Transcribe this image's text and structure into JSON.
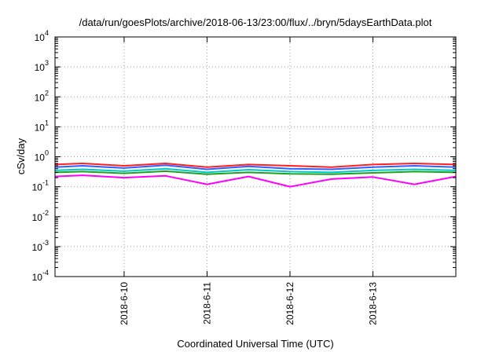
{
  "chart_data": {
    "type": "line",
    "title": "/data/run/goesPlots/archive/2018-06-13/23:00/flux/../bryn/5daysEarthData.plot",
    "xlabel": "Coordinated Universal Time (UTC)",
    "ylabel": "cSv/day",
    "yscale": "log",
    "ylim": [
      0.0001,
      10000
    ],
    "xlim": [
      "2018-06-09 04:00",
      "2018-06-14 00:00"
    ],
    "grid": true,
    "x_ticks": [
      {
        "value": "2018-06-10 00:00",
        "label": "2018-6-10"
      },
      {
        "value": "2018-06-11 00:00",
        "label": "2018-6-11"
      },
      {
        "value": "2018-06-12 00:00",
        "label": "2018-6-12"
      },
      {
        "value": "2018-06-13 00:00",
        "label": "2018-6-13"
      }
    ],
    "y_ticks": [
      {
        "value": 10000,
        "base": "10",
        "exp": "4"
      },
      {
        "value": 1000,
        "base": "10",
        "exp": "3"
      },
      {
        "value": 100,
        "base": "10",
        "exp": "2"
      },
      {
        "value": 10,
        "base": "10",
        "exp": "1"
      },
      {
        "value": 1,
        "base": "10",
        "exp": "0"
      },
      {
        "value": 0.1,
        "base": "10",
        "exp": "-1"
      },
      {
        "value": 0.01,
        "base": "10",
        "exp": "-2"
      },
      {
        "value": 0.001,
        "base": "10",
        "exp": "-3"
      },
      {
        "value": 0.0001,
        "base": "10",
        "exp": "-4"
      }
    ],
    "series": [
      {
        "color": "#ff2020",
        "x": [
          "2018-06-09 04:00",
          "2018-06-09 12:00",
          "2018-06-10 00:00",
          "2018-06-10 12:00",
          "2018-06-11 00:00",
          "2018-06-11 12:00",
          "2018-06-12 00:00",
          "2018-06-12 12:00",
          "2018-06-13 00:00",
          "2018-06-13 12:00",
          "2018-06-14 00:00"
        ],
        "values": [
          0.55,
          0.6,
          0.5,
          0.6,
          0.45,
          0.55,
          0.5,
          0.45,
          0.55,
          0.6,
          0.55
        ]
      },
      {
        "color": "#3060ff",
        "x": [
          "2018-06-09 04:00",
          "2018-06-09 12:00",
          "2018-06-10 00:00",
          "2018-06-10 12:00",
          "2018-06-11 00:00",
          "2018-06-11 12:00",
          "2018-06-12 00:00",
          "2018-06-12 12:00",
          "2018-06-13 00:00",
          "2018-06-13 12:00",
          "2018-06-14 00:00"
        ],
        "values": [
          0.45,
          0.5,
          0.42,
          0.52,
          0.38,
          0.48,
          0.4,
          0.38,
          0.45,
          0.5,
          0.45
        ]
      },
      {
        "color": "#00c8c8",
        "x": [
          "2018-06-09 04:00",
          "2018-06-09 12:00",
          "2018-06-10 00:00",
          "2018-06-10 12:00",
          "2018-06-11 00:00",
          "2018-06-11 12:00",
          "2018-06-12 00:00",
          "2018-06-12 12:00",
          "2018-06-13 00:00",
          "2018-06-13 12:00",
          "2018-06-14 00:00"
        ],
        "values": [
          0.35,
          0.38,
          0.33,
          0.4,
          0.3,
          0.37,
          0.32,
          0.3,
          0.35,
          0.38,
          0.35
        ]
      },
      {
        "color": "#20a020",
        "x": [
          "2018-06-09 04:00",
          "2018-06-09 12:00",
          "2018-06-10 00:00",
          "2018-06-10 12:00",
          "2018-06-11 00:00",
          "2018-06-11 12:00",
          "2018-06-12 00:00",
          "2018-06-12 12:00",
          "2018-06-13 00:00",
          "2018-06-13 12:00",
          "2018-06-14 00:00"
        ],
        "values": [
          0.3,
          0.32,
          0.28,
          0.33,
          0.26,
          0.3,
          0.27,
          0.26,
          0.29,
          0.32,
          0.3
        ]
      },
      {
        "color": "#ff00ff",
        "x": [
          "2018-06-09 04:00",
          "2018-06-09 12:00",
          "2018-06-10 00:00",
          "2018-06-10 12:00",
          "2018-06-11 00:00",
          "2018-06-11 12:00",
          "2018-06-12 00:00",
          "2018-06-12 12:00",
          "2018-06-13 00:00",
          "2018-06-13 12:00",
          "2018-06-14 00:00"
        ],
        "values": [
          0.22,
          0.24,
          0.2,
          0.23,
          0.12,
          0.22,
          0.1,
          0.18,
          0.21,
          0.12,
          0.22
        ]
      }
    ]
  }
}
